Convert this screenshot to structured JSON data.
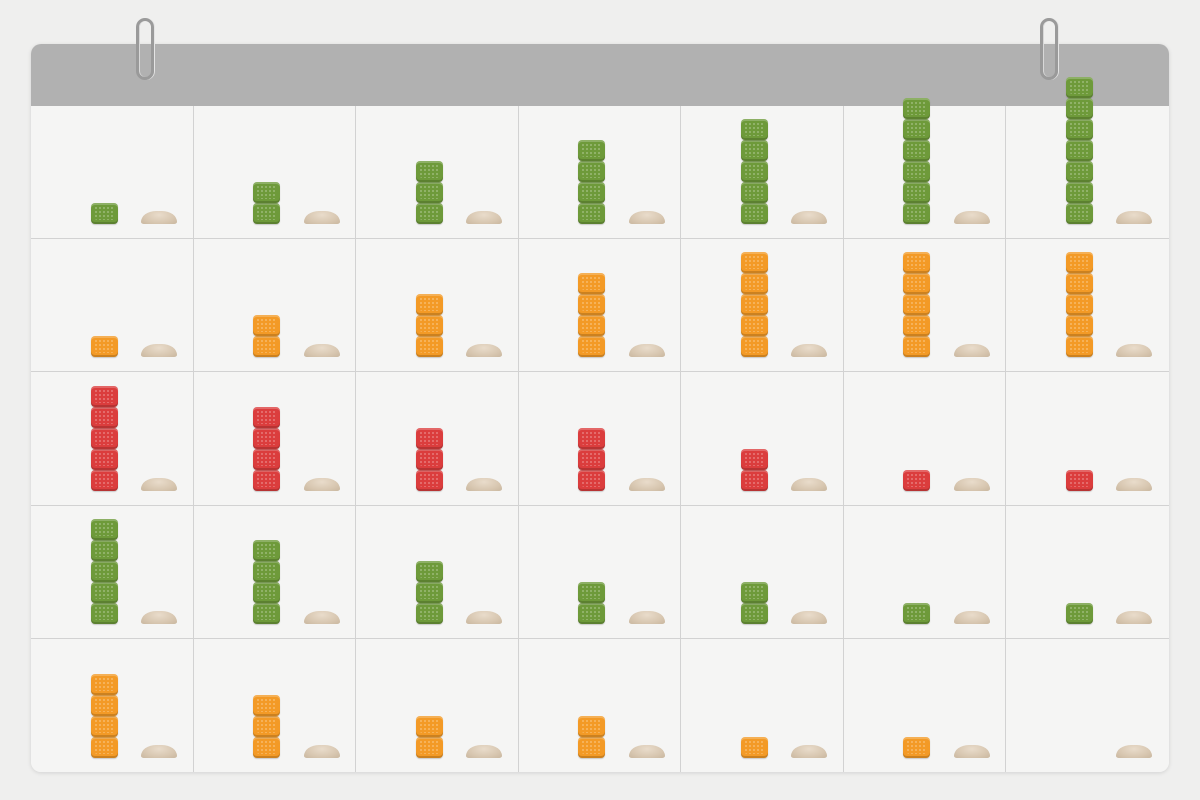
{
  "calendar": {
    "columns": 7,
    "rows": 5,
    "colors": {
      "green": "#6e9a3a",
      "orange": "#f39a26",
      "red": "#db3d3d",
      "header": "#b1b1b1",
      "powder": "#d8c7b1"
    },
    "cells": [
      {
        "color": "green",
        "count": 1
      },
      {
        "color": "green",
        "count": 2
      },
      {
        "color": "green",
        "count": 3
      },
      {
        "color": "green",
        "count": 4
      },
      {
        "color": "green",
        "count": 5
      },
      {
        "color": "green",
        "count": 6
      },
      {
        "color": "green",
        "count": 7
      },
      {
        "color": "orange",
        "count": 1
      },
      {
        "color": "orange",
        "count": 2
      },
      {
        "color": "orange",
        "count": 3
      },
      {
        "color": "orange",
        "count": 4
      },
      {
        "color": "orange",
        "count": 5
      },
      {
        "color": "orange",
        "count": 5
      },
      {
        "color": "orange",
        "count": 5
      },
      {
        "color": "red",
        "count": 5
      },
      {
        "color": "red",
        "count": 4
      },
      {
        "color": "red",
        "count": 3
      },
      {
        "color": "red",
        "count": 3
      },
      {
        "color": "red",
        "count": 2
      },
      {
        "color": "red",
        "count": 1
      },
      {
        "color": "red",
        "count": 1
      },
      {
        "color": "green",
        "count": 5
      },
      {
        "color": "green",
        "count": 4
      },
      {
        "color": "green",
        "count": 3
      },
      {
        "color": "green",
        "count": 2
      },
      {
        "color": "green",
        "count": 2
      },
      {
        "color": "green",
        "count": 1
      },
      {
        "color": "green",
        "count": 1
      },
      {
        "color": "orange",
        "count": 4
      },
      {
        "color": "orange",
        "count": 3
      },
      {
        "color": "orange",
        "count": 2
      },
      {
        "color": "orange",
        "count": 2
      },
      {
        "color": "orange",
        "count": 1
      },
      {
        "color": "orange",
        "count": 1
      },
      {
        "color": "orange",
        "count": 0
      }
    ]
  }
}
